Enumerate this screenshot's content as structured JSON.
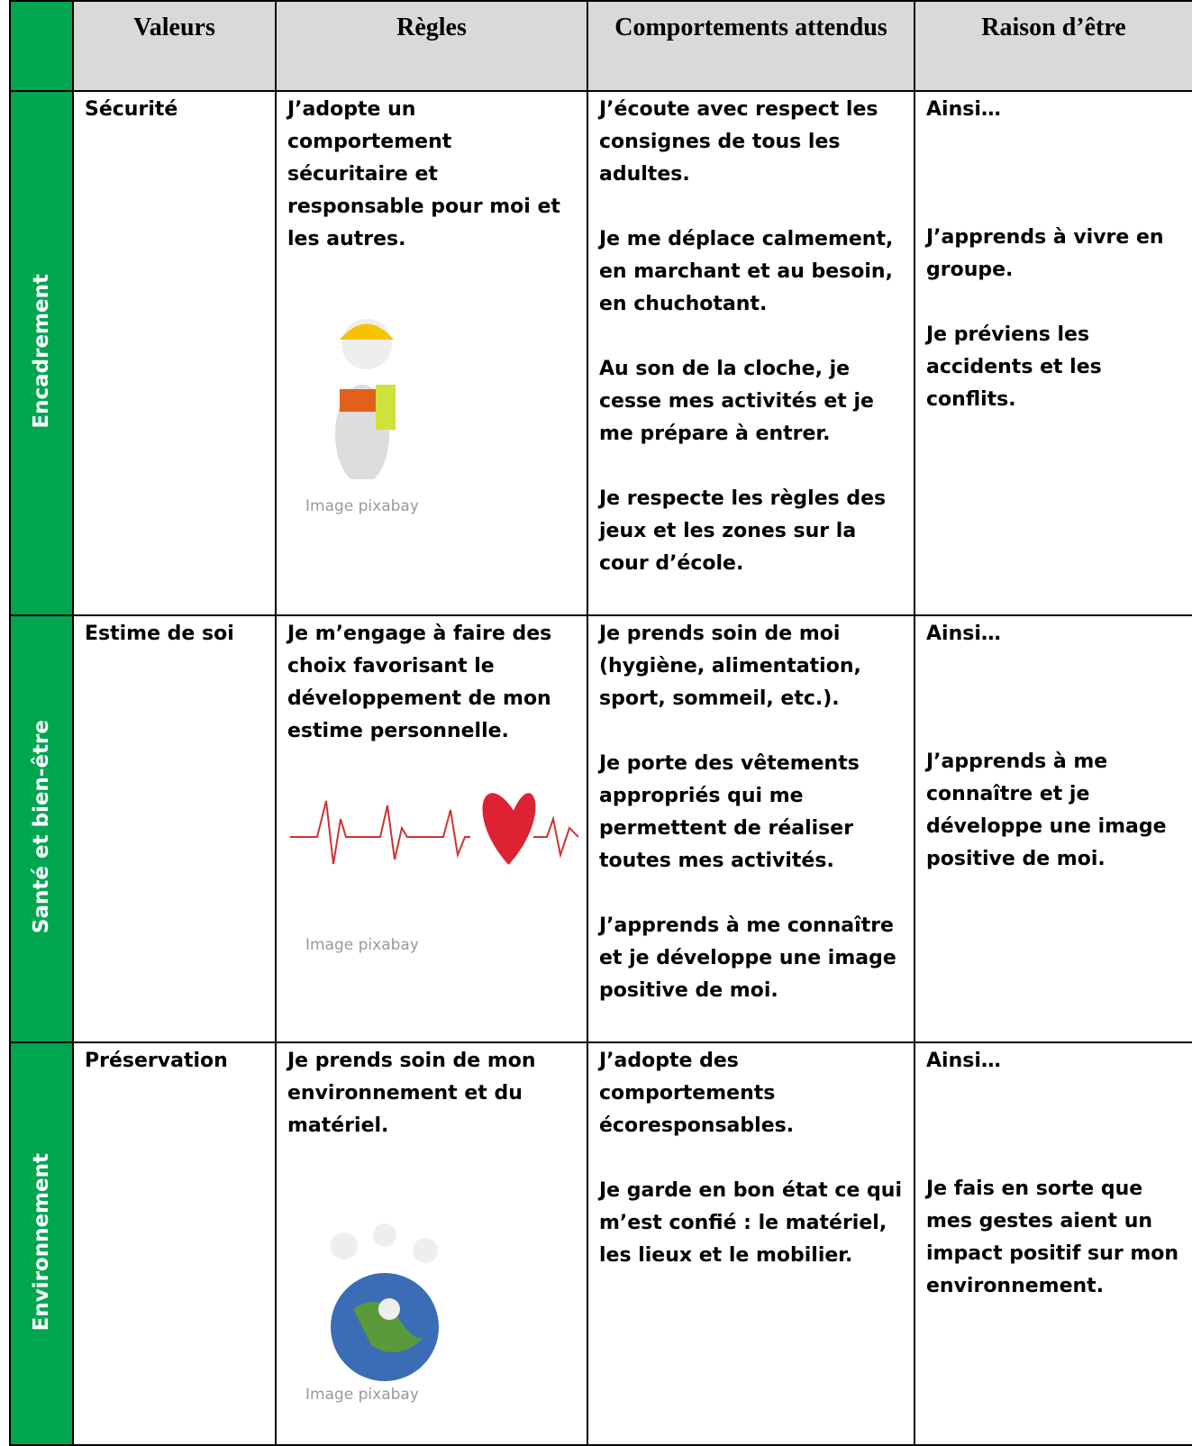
{
  "header": {
    "cells": [
      "Valeurs",
      "Règles",
      "Comportements attendus",
      "Raison d’être"
    ]
  },
  "rows": [
    {
      "group": "Encadrement",
      "value": "Sécurité",
      "rule": "J’adopte un comportement sécuritaire et responsable pour moi et les autres.",
      "caption": "Image pixabay",
      "behaviors": [
        "J’écoute avec respect les consignes de tous les adultes.",
        "Je me déplace calmement, en marchant et au besoin, en chuchotant.",
        "Au son de la cloche, je cesse mes activités et je me prépare à entrer.",
        "Je respecte les règles des jeux et les zones sur la cour d’école."
      ],
      "reasons": [
        "Ainsi…",
        "J’apprends à vivre en groupe.",
        "Je préviens les accidents et les conflits."
      ]
    },
    {
      "group": "Santé et bien-être",
      "value": "Estime de soi",
      "rule": "Je m’engage à faire des choix favorisant le développement de mon estime personnelle.",
      "caption": "Image pixabay",
      "behaviors": [
        "Je prends soin de moi (hygiène, alimentation, sport, sommeil, etc.).",
        "Je porte des vêtements appropriés qui me permettent de réaliser toutes mes activités.",
        "J’apprends à me connaître et je développe une image positive de moi."
      ],
      "reasons": [
        "Ainsi…",
        "J’apprends à me connaître et je développe une image positive de moi."
      ]
    },
    {
      "group": "Environnement",
      "value": "Préservation",
      "rule": "Je prends soin de mon environnement et du matériel.",
      "caption": "Image pixabay",
      "behaviors": [
        "J’adopte des comportements écoresponsables.",
        "Je garde en bon état ce qui m’est confié : le matériel, les lieux et le mobilier."
      ],
      "reasons": [
        "Ainsi…",
        "Je fais en sorte que mes gestes aient un impact positif sur mon environnement."
      ]
    }
  ]
}
